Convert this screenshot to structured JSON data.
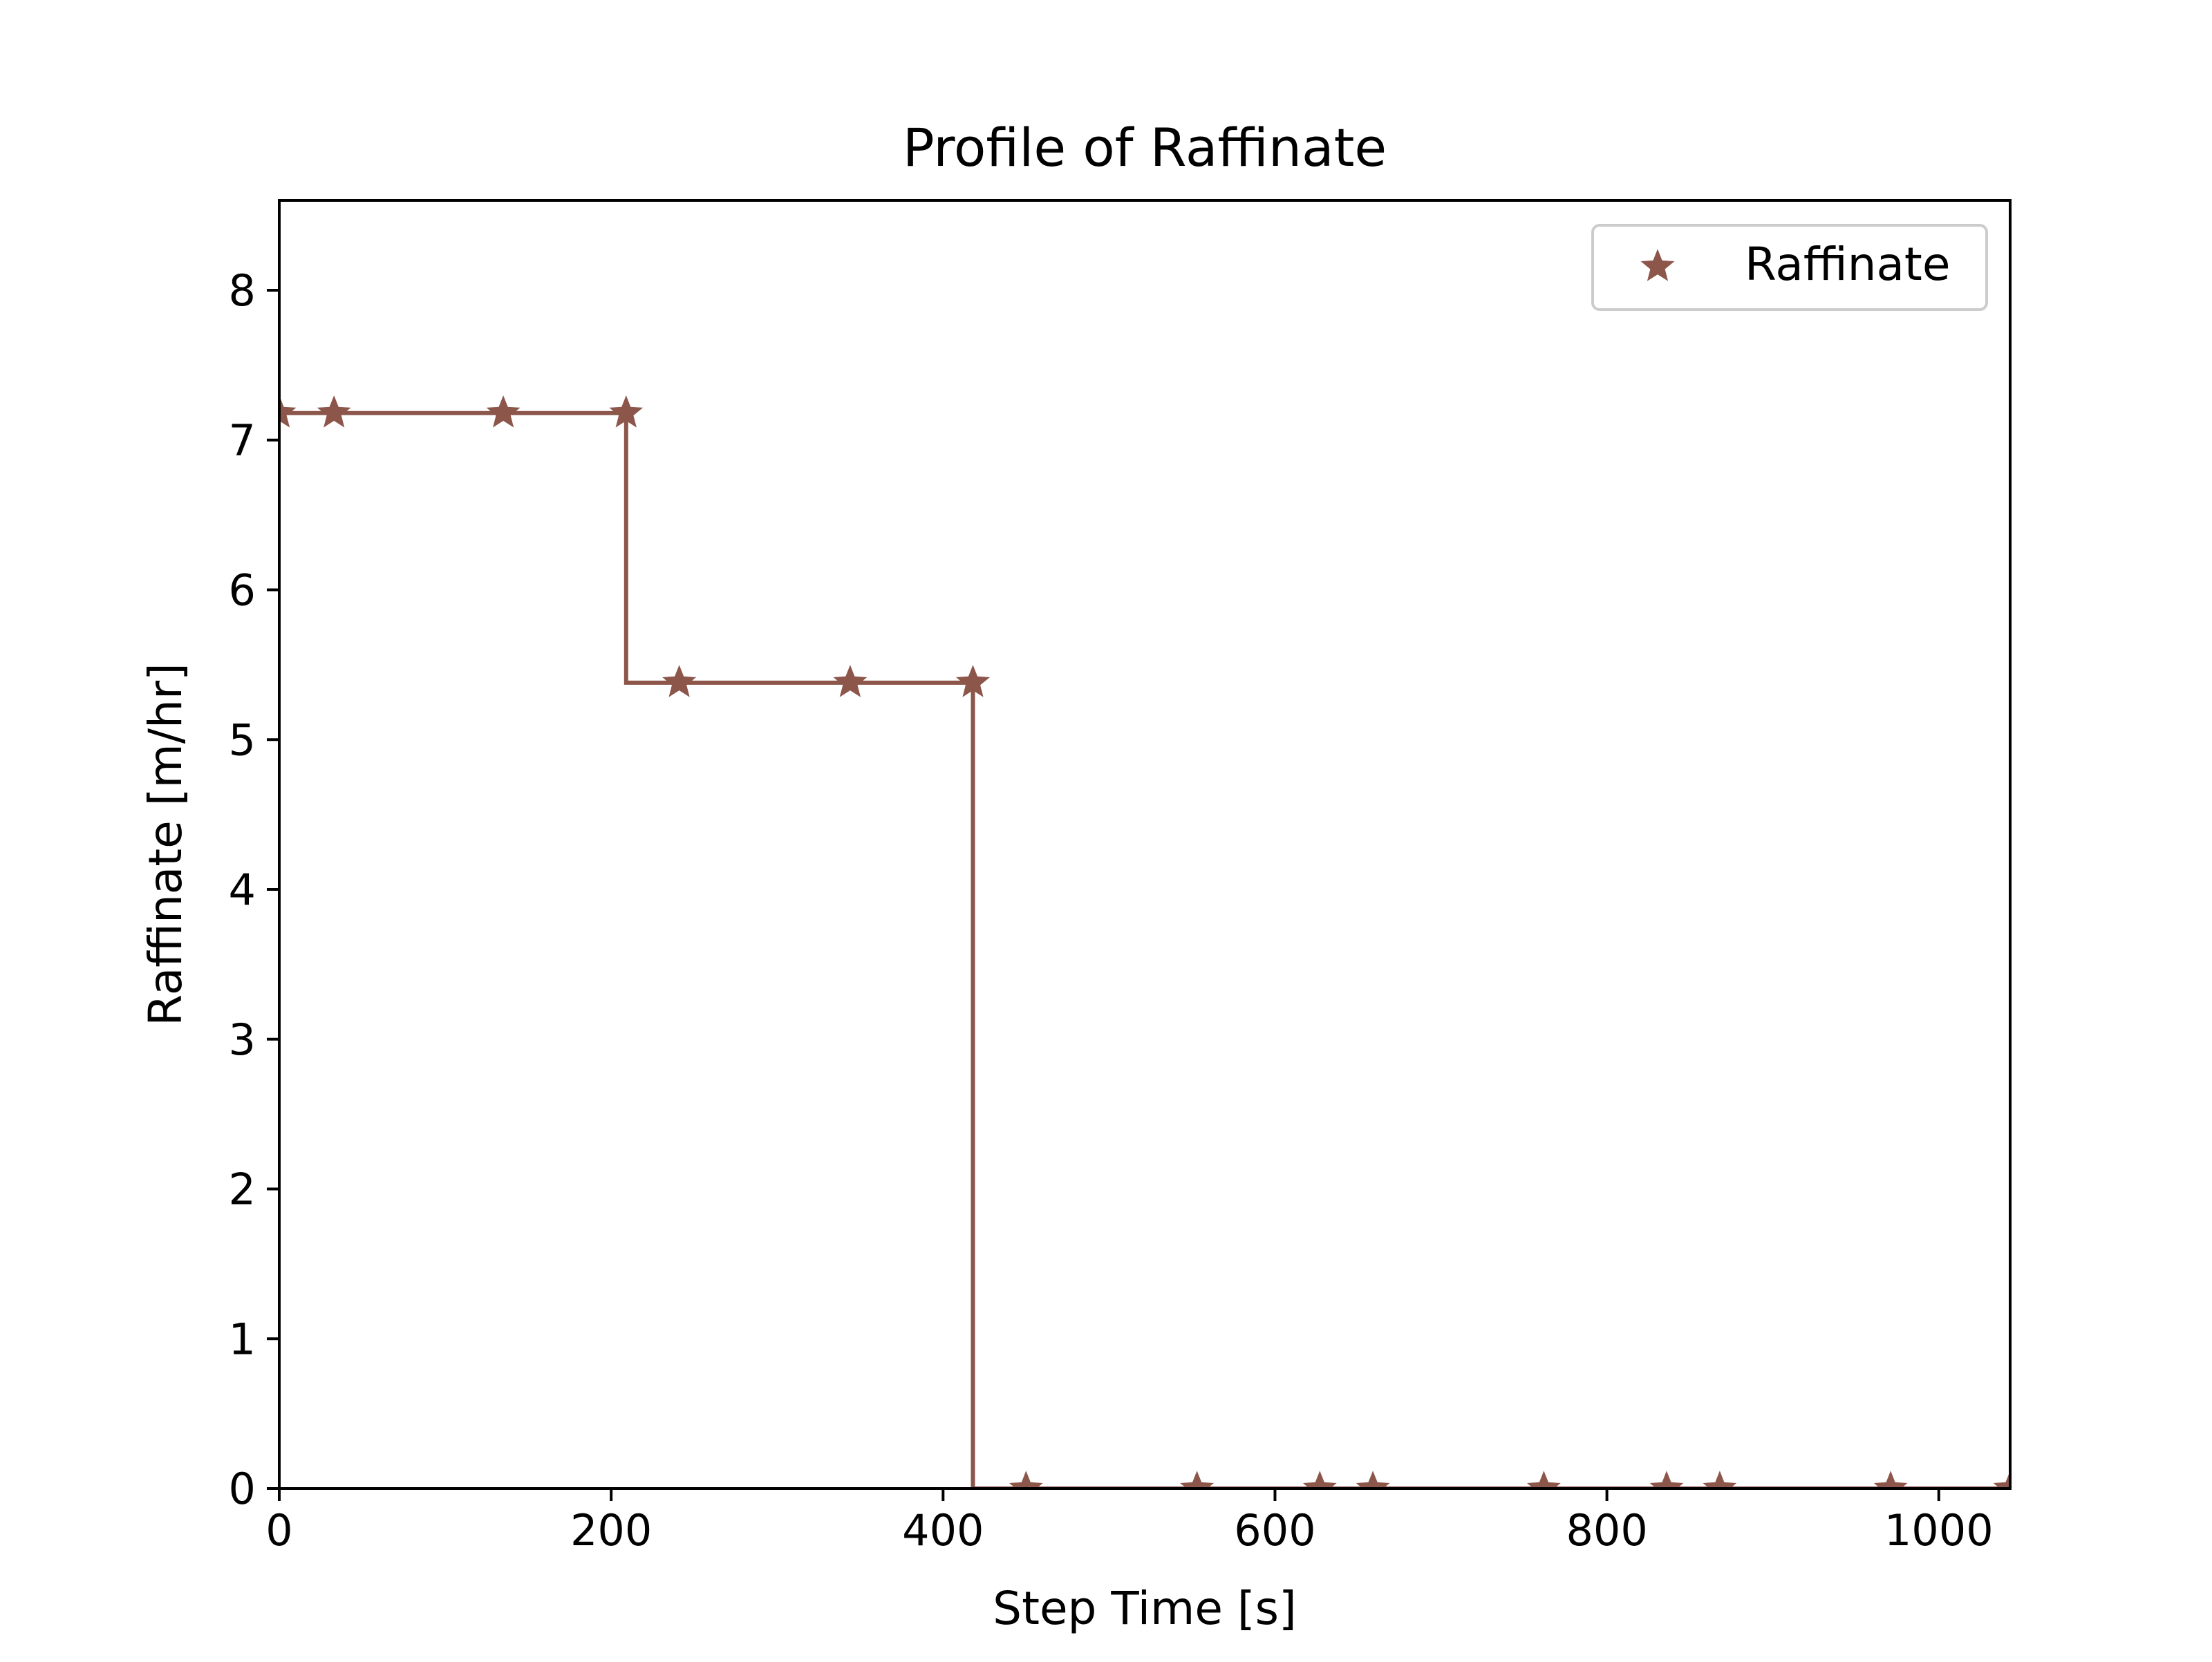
{
  "chart_data": {
    "type": "line",
    "title": "Profile of Raffinate",
    "xlabel": "Step Time [s]",
    "ylabel": "Raffinate [m/hr]",
    "xlim": [
      0,
      1043
    ],
    "ylim": [
      0,
      8.6
    ],
    "xticks": [
      0,
      200,
      400,
      600,
      800,
      1000
    ],
    "yticks": [
      0,
      1,
      2,
      3,
      4,
      5,
      6,
      7,
      8
    ],
    "grid": false,
    "legend_position": "top-right",
    "series": [
      {
        "name": "Raffinate",
        "color": "#8c564b",
        "marker": "star",
        "line_style": "step",
        "step_x": [
          0,
          209,
          209,
          418,
          418,
          1043
        ],
        "step_y": [
          7.18,
          7.18,
          5.38,
          5.38,
          0,
          0
        ],
        "points": [
          {
            "x": 0,
            "y": 7.18
          },
          {
            "x": 33,
            "y": 7.18
          },
          {
            "x": 135,
            "y": 7.18
          },
          {
            "x": 209,
            "y": 7.18
          },
          {
            "x": 241,
            "y": 5.38
          },
          {
            "x": 344,
            "y": 5.38
          },
          {
            "x": 418,
            "y": 5.38
          },
          {
            "x": 450,
            "y": 0
          },
          {
            "x": 553,
            "y": 0
          },
          {
            "x": 627,
            "y": 0
          },
          {
            "x": 659,
            "y": 0
          },
          {
            "x": 762,
            "y": 0
          },
          {
            "x": 836,
            "y": 0
          },
          {
            "x": 868,
            "y": 0
          },
          {
            "x": 971,
            "y": 0
          },
          {
            "x": 1043,
            "y": 0
          }
        ]
      }
    ]
  }
}
